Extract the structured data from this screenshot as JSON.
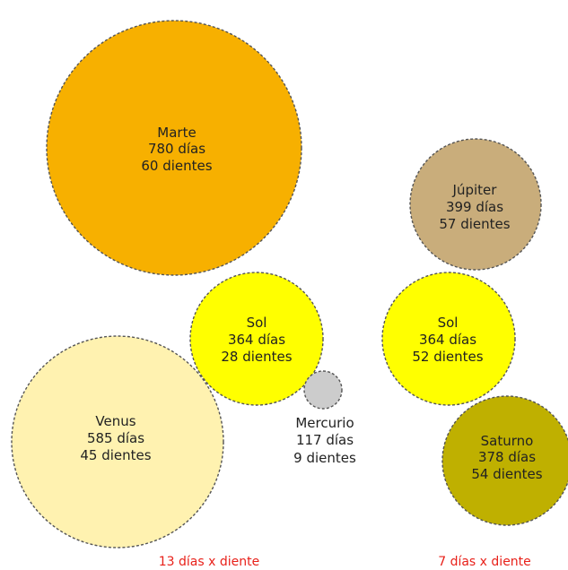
{
  "groups": [
    {
      "footer": "13 días x diente",
      "gears": [
        {
          "id": "marte",
          "name": "Marte",
          "days": "780 días",
          "teeth": "60 dientes",
          "color": "#f7b000"
        },
        {
          "id": "sol-a",
          "name": "Sol",
          "days": "364 días",
          "teeth": "28 dientes",
          "color": "#ffff00"
        },
        {
          "id": "mercurio",
          "name": "Mercurio",
          "days": "117 días",
          "teeth": "9 dientes",
          "color": "#cccccc"
        },
        {
          "id": "venus",
          "name": "Venus",
          "days": "585 días",
          "teeth": "45 dientes",
          "color": "#fff2b0"
        }
      ]
    },
    {
      "footer": "7 días x diente",
      "gears": [
        {
          "id": "jupiter",
          "name": "Júpiter",
          "days": "399 días",
          "teeth": "57 dientes",
          "color": "#c9ad7b"
        },
        {
          "id": "sol-b",
          "name": "Sol",
          "days": "364 días",
          "teeth": "52 dientes",
          "color": "#ffff00"
        },
        {
          "id": "saturno",
          "name": "Saturno",
          "days": "378 días",
          "teeth": "54 dientes",
          "color": "#bfb000"
        }
      ]
    }
  ]
}
